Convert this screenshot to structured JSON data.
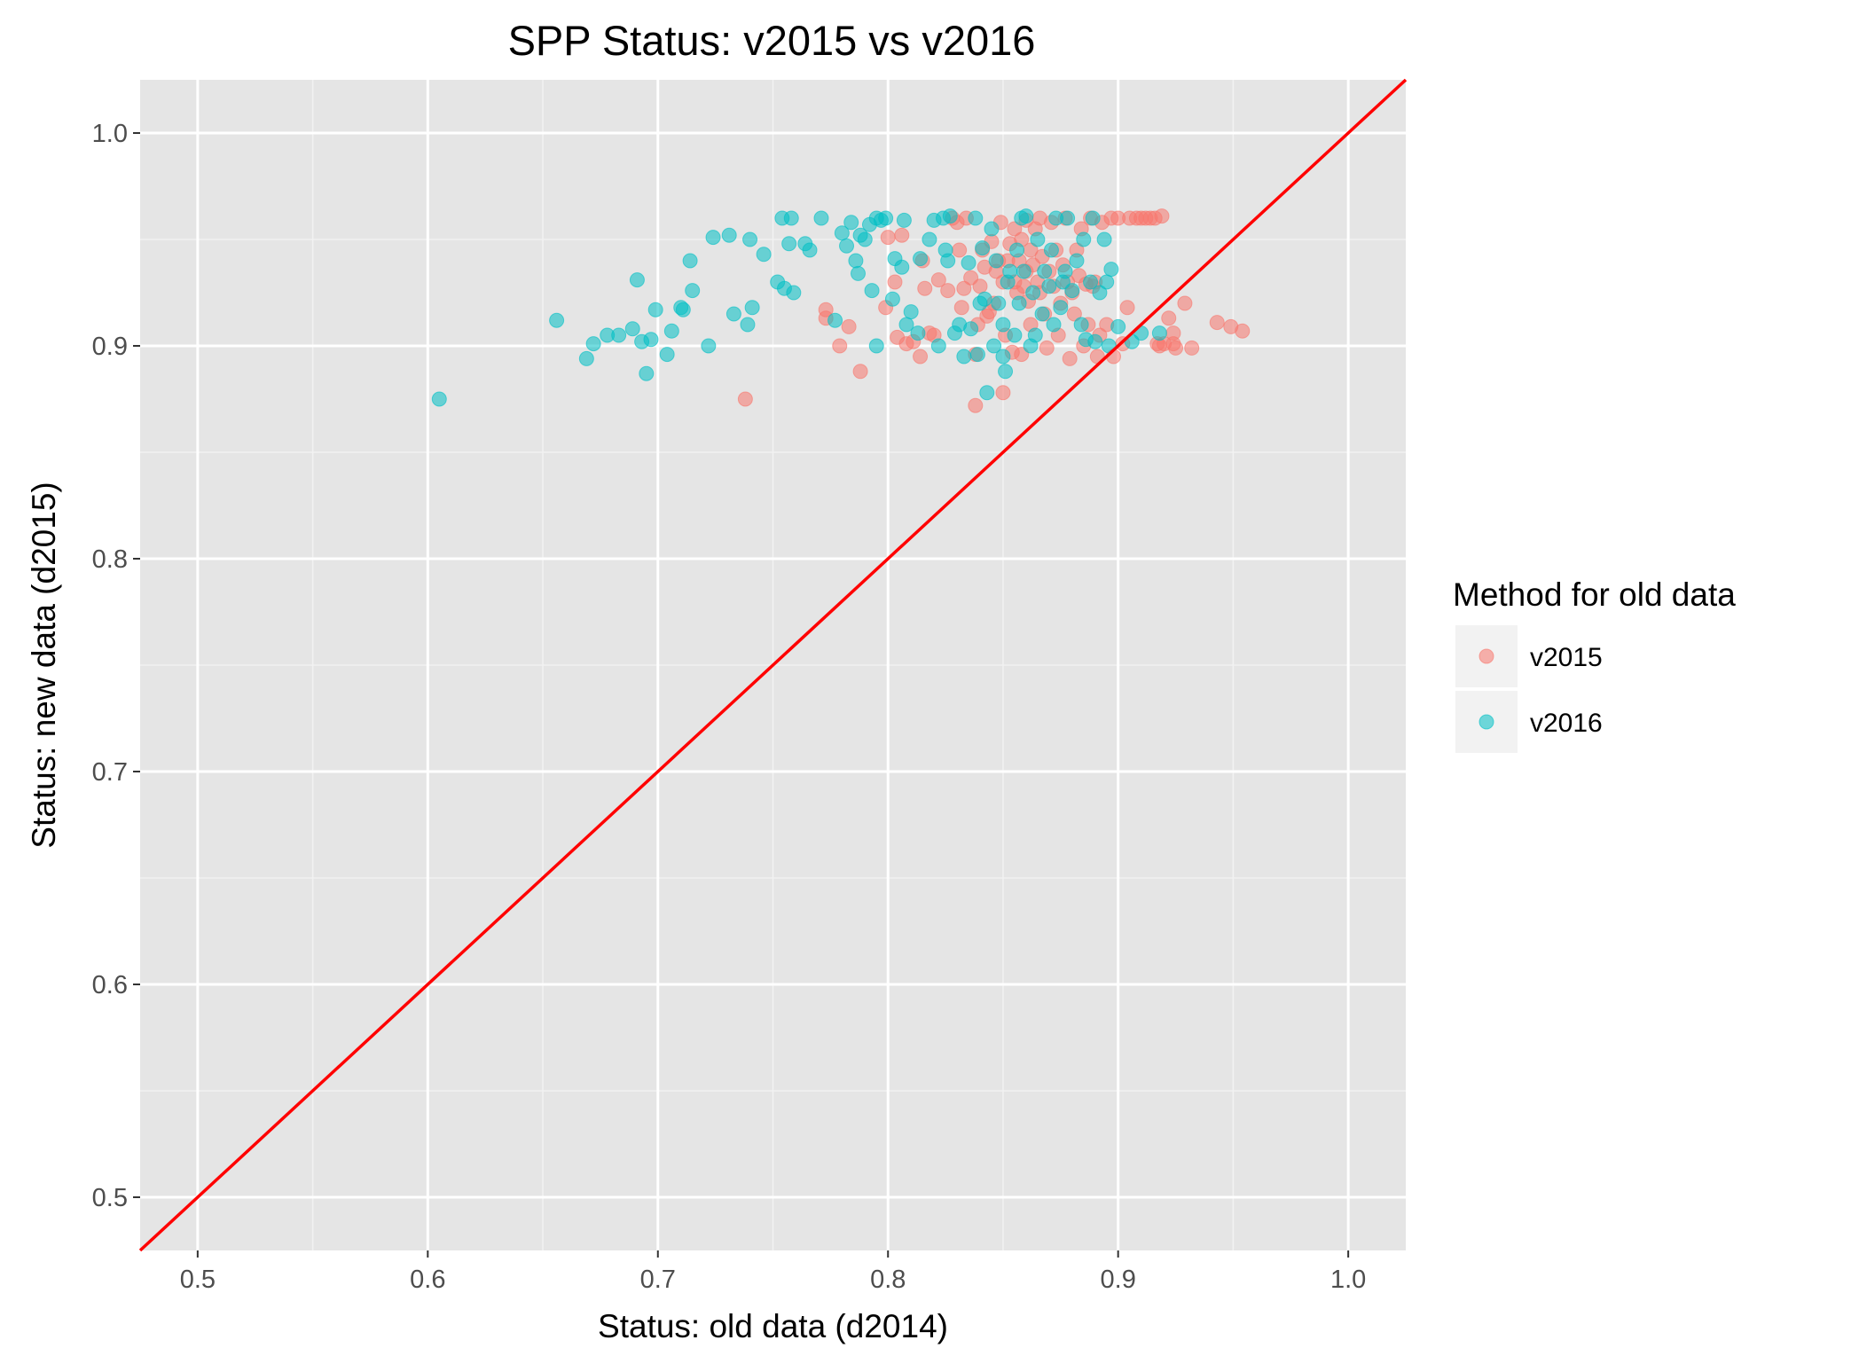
{
  "chart_data": {
    "type": "scatter",
    "title": "SPP Status: v2015 vs v2016",
    "xlabel": "Status: old data (d2014)",
    "ylabel": "Status: new data (d2015)",
    "xlim": [
      0.475,
      1.025
    ],
    "ylim": [
      0.475,
      1.025
    ],
    "x_ticks": [
      0.5,
      0.6,
      0.7,
      0.8,
      0.9,
      1.0
    ],
    "x_tick_labels": [
      "0.5",
      "0.6",
      "0.7",
      "0.8",
      "0.9",
      "1.0"
    ],
    "y_ticks": [
      0.5,
      0.6,
      0.7,
      0.8,
      0.9,
      1.0
    ],
    "y_tick_labels": [
      "0.5",
      "0.6",
      "0.7",
      "0.8",
      "0.9",
      "1.0"
    ],
    "grid": true,
    "legend_position": "right",
    "legend_title": "Method for old data",
    "reference_line": {
      "type": "identity",
      "slope": 1,
      "intercept": 0,
      "color": "#ff0000"
    },
    "series": [
      {
        "name": "v2015",
        "color": "#F8766D",
        "points": [
          [
            0.738,
            0.875
          ],
          [
            0.773,
            0.917
          ],
          [
            0.773,
            0.913
          ],
          [
            0.779,
            0.9
          ],
          [
            0.783,
            0.909
          ],
          [
            0.788,
            0.888
          ],
          [
            0.799,
            0.918
          ],
          [
            0.8,
            0.951
          ],
          [
            0.803,
            0.93
          ],
          [
            0.804,
            0.904
          ],
          [
            0.806,
            0.952
          ],
          [
            0.808,
            0.901
          ],
          [
            0.811,
            0.902
          ],
          [
            0.814,
            0.895
          ],
          [
            0.815,
            0.94
          ],
          [
            0.816,
            0.927
          ],
          [
            0.818,
            0.906
          ],
          [
            0.82,
            0.905
          ],
          [
            0.822,
            0.931
          ],
          [
            0.826,
            0.926
          ],
          [
            0.828,
            0.96
          ],
          [
            0.83,
            0.958
          ],
          [
            0.831,
            0.945
          ],
          [
            0.832,
            0.918
          ],
          [
            0.833,
            0.927
          ],
          [
            0.834,
            0.96
          ],
          [
            0.836,
            0.932
          ],
          [
            0.838,
            0.872
          ],
          [
            0.838,
            0.896
          ],
          [
            0.839,
            0.91
          ],
          [
            0.84,
            0.928
          ],
          [
            0.841,
            0.945
          ],
          [
            0.842,
            0.937
          ],
          [
            0.843,
            0.914
          ],
          [
            0.844,
            0.916
          ],
          [
            0.845,
            0.949
          ],
          [
            0.846,
            0.92
          ],
          [
            0.847,
            0.935
          ],
          [
            0.848,
            0.94
          ],
          [
            0.849,
            0.958
          ],
          [
            0.85,
            0.878
          ],
          [
            0.85,
            0.93
          ],
          [
            0.851,
            0.905
          ],
          [
            0.852,
            0.94
          ],
          [
            0.853,
            0.948
          ],
          [
            0.854,
            0.897
          ],
          [
            0.855,
            0.955
          ],
          [
            0.855,
            0.93
          ],
          [
            0.856,
            0.925
          ],
          [
            0.857,
            0.94
          ],
          [
            0.858,
            0.896
          ],
          [
            0.858,
            0.95
          ],
          [
            0.859,
            0.928
          ],
          [
            0.86,
            0.935
          ],
          [
            0.86,
            0.959
          ],
          [
            0.861,
            0.921
          ],
          [
            0.862,
            0.945
          ],
          [
            0.862,
            0.91
          ],
          [
            0.863,
            0.938
          ],
          [
            0.864,
            0.955
          ],
          [
            0.865,
            0.93
          ],
          [
            0.866,
            0.925
          ],
          [
            0.866,
            0.96
          ],
          [
            0.867,
            0.942
          ],
          [
            0.868,
            0.915
          ],
          [
            0.869,
            0.899
          ],
          [
            0.87,
            0.935
          ],
          [
            0.871,
            0.958
          ],
          [
            0.872,
            0.928
          ],
          [
            0.873,
            0.945
          ],
          [
            0.874,
            0.905
          ],
          [
            0.875,
            0.92
          ],
          [
            0.876,
            0.938
          ],
          [
            0.877,
            0.96
          ],
          [
            0.878,
            0.93
          ],
          [
            0.879,
            0.894
          ],
          [
            0.88,
            0.925
          ],
          [
            0.881,
            0.915
          ],
          [
            0.882,
            0.945
          ],
          [
            0.883,
            0.933
          ],
          [
            0.884,
            0.955
          ],
          [
            0.885,
            0.9
          ],
          [
            0.886,
            0.929
          ],
          [
            0.887,
            0.91
          ],
          [
            0.888,
            0.96
          ],
          [
            0.889,
            0.928
          ],
          [
            0.89,
            0.93
          ],
          [
            0.891,
            0.895
          ],
          [
            0.892,
            0.905
          ],
          [
            0.893,
            0.958
          ],
          [
            0.895,
            0.91
          ],
          [
            0.897,
            0.96
          ],
          [
            0.898,
            0.895
          ],
          [
            0.9,
            0.96
          ],
          [
            0.902,
            0.901
          ],
          [
            0.904,
            0.918
          ],
          [
            0.905,
            0.96
          ],
          [
            0.908,
            0.96
          ],
          [
            0.91,
            0.96
          ],
          [
            0.912,
            0.96
          ],
          [
            0.914,
            0.96
          ],
          [
            0.916,
            0.96
          ],
          [
            0.917,
            0.901
          ],
          [
            0.918,
            0.9
          ],
          [
            0.919,
            0.961
          ],
          [
            0.92,
            0.901
          ],
          [
            0.922,
            0.913
          ],
          [
            0.924,
            0.906
          ],
          [
            0.924,
            0.901
          ],
          [
            0.925,
            0.899
          ],
          [
            0.929,
            0.92
          ],
          [
            0.932,
            0.899
          ],
          [
            0.943,
            0.911
          ],
          [
            0.949,
            0.909
          ],
          [
            0.954,
            0.907
          ]
        ]
      },
      {
        "name": "v2016",
        "color": "#00BFC4",
        "points": [
          [
            0.605,
            0.875
          ],
          [
            0.656,
            0.912
          ],
          [
            0.669,
            0.894
          ],
          [
            0.672,
            0.901
          ],
          [
            0.678,
            0.905
          ],
          [
            0.683,
            0.905
          ],
          [
            0.689,
            0.908
          ],
          [
            0.691,
            0.931
          ],
          [
            0.693,
            0.902
          ],
          [
            0.695,
            0.887
          ],
          [
            0.697,
            0.903
          ],
          [
            0.699,
            0.917
          ],
          [
            0.704,
            0.896
          ],
          [
            0.706,
            0.907
          ],
          [
            0.71,
            0.918
          ],
          [
            0.711,
            0.917
          ],
          [
            0.714,
            0.94
          ],
          [
            0.715,
            0.926
          ],
          [
            0.722,
            0.9
          ],
          [
            0.724,
            0.951
          ],
          [
            0.731,
            0.952
          ],
          [
            0.733,
            0.915
          ],
          [
            0.739,
            0.91
          ],
          [
            0.74,
            0.95
          ],
          [
            0.741,
            0.918
          ],
          [
            0.746,
            0.943
          ],
          [
            0.752,
            0.93
          ],
          [
            0.754,
            0.96
          ],
          [
            0.755,
            0.927
          ],
          [
            0.757,
            0.948
          ],
          [
            0.758,
            0.96
          ],
          [
            0.759,
            0.925
          ],
          [
            0.764,
            0.948
          ],
          [
            0.766,
            0.945
          ],
          [
            0.771,
            0.96
          ],
          [
            0.777,
            0.912
          ],
          [
            0.78,
            0.953
          ],
          [
            0.782,
            0.947
          ],
          [
            0.784,
            0.958
          ],
          [
            0.786,
            0.94
          ],
          [
            0.787,
            0.934
          ],
          [
            0.788,
            0.952
          ],
          [
            0.79,
            0.95
          ],
          [
            0.792,
            0.957
          ],
          [
            0.793,
            0.926
          ],
          [
            0.795,
            0.96
          ],
          [
            0.795,
            0.9
          ],
          [
            0.797,
            0.959
          ],
          [
            0.799,
            0.96
          ],
          [
            0.802,
            0.922
          ],
          [
            0.803,
            0.941
          ],
          [
            0.806,
            0.937
          ],
          [
            0.807,
            0.959
          ],
          [
            0.808,
            0.91
          ],
          [
            0.81,
            0.916
          ],
          [
            0.813,
            0.906
          ],
          [
            0.814,
            0.941
          ],
          [
            0.818,
            0.95
          ],
          [
            0.82,
            0.959
          ],
          [
            0.822,
            0.9
          ],
          [
            0.824,
            0.96
          ],
          [
            0.825,
            0.945
          ],
          [
            0.826,
            0.94
          ],
          [
            0.827,
            0.961
          ],
          [
            0.829,
            0.906
          ],
          [
            0.831,
            0.91
          ],
          [
            0.833,
            0.895
          ],
          [
            0.835,
            0.939
          ],
          [
            0.836,
            0.908
          ],
          [
            0.838,
            0.96
          ],
          [
            0.839,
            0.896
          ],
          [
            0.84,
            0.92
          ],
          [
            0.841,
            0.946
          ],
          [
            0.842,
            0.922
          ],
          [
            0.843,
            0.878
          ],
          [
            0.845,
            0.955
          ],
          [
            0.846,
            0.9
          ],
          [
            0.847,
            0.94
          ],
          [
            0.848,
            0.92
          ],
          [
            0.85,
            0.895
          ],
          [
            0.85,
            0.91
          ],
          [
            0.851,
            0.888
          ],
          [
            0.852,
            0.93
          ],
          [
            0.853,
            0.935
          ],
          [
            0.855,
            0.905
          ],
          [
            0.856,
            0.945
          ],
          [
            0.857,
            0.92
          ],
          [
            0.858,
            0.96
          ],
          [
            0.859,
            0.935
          ],
          [
            0.86,
            0.961
          ],
          [
            0.862,
            0.9
          ],
          [
            0.863,
            0.925
          ],
          [
            0.864,
            0.905
          ],
          [
            0.865,
            0.95
          ],
          [
            0.867,
            0.915
          ],
          [
            0.868,
            0.935
          ],
          [
            0.87,
            0.928
          ],
          [
            0.871,
            0.945
          ],
          [
            0.872,
            0.91
          ],
          [
            0.873,
            0.96
          ],
          [
            0.875,
            0.918
          ],
          [
            0.876,
            0.93
          ],
          [
            0.877,
            0.935
          ],
          [
            0.878,
            0.96
          ],
          [
            0.88,
            0.926
          ],
          [
            0.882,
            0.94
          ],
          [
            0.884,
            0.91
          ],
          [
            0.885,
            0.95
          ],
          [
            0.886,
            0.903
          ],
          [
            0.888,
            0.93
          ],
          [
            0.889,
            0.96
          ],
          [
            0.89,
            0.902
          ],
          [
            0.892,
            0.925
          ],
          [
            0.894,
            0.95
          ],
          [
            0.895,
            0.93
          ],
          [
            0.896,
            0.9
          ],
          [
            0.897,
            0.936
          ],
          [
            0.9,
            0.909
          ],
          [
            0.906,
            0.902
          ],
          [
            0.91,
            0.906
          ],
          [
            0.918,
            0.906
          ]
        ]
      }
    ]
  }
}
